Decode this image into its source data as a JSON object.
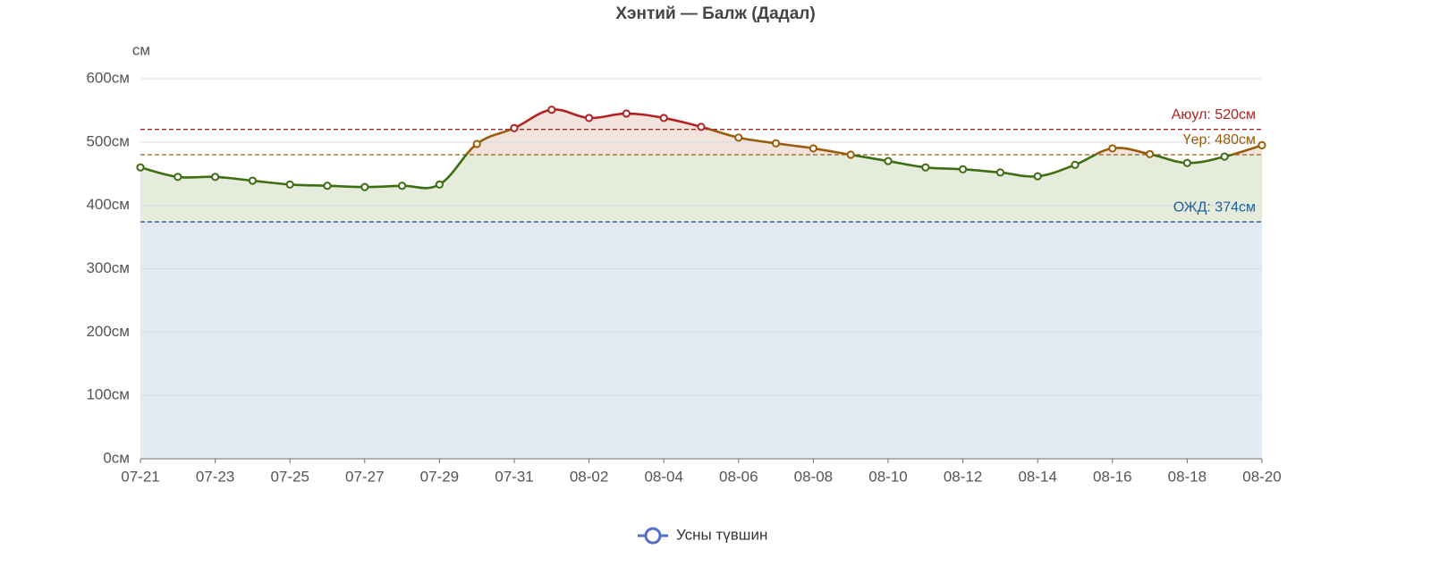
{
  "chart_data": {
    "type": "line",
    "title": "Хэнтий — Балж (Дадал)",
    "y_unit": "см",
    "categories": [
      "07-21",
      null,
      "07-23",
      null,
      "07-25",
      null,
      "07-27",
      null,
      "07-29",
      null,
      "07-31",
      null,
      "08-02",
      null,
      "08-04",
      null,
      "08-06",
      null,
      "08-08",
      null,
      "08-10",
      null,
      "08-12",
      null,
      "08-14",
      null,
      "08-16",
      null,
      "08-18",
      null,
      "08-20"
    ],
    "series": [
      {
        "name": "Усны түвшин",
        "color": "#5470c6",
        "values": [
          460,
          445,
          445,
          439,
          433,
          431,
          429,
          431,
          433,
          497,
          522,
          551,
          538,
          545,
          538,
          524,
          507,
          498,
          490,
          480,
          470,
          460,
          457,
          452,
          446,
          464,
          490,
          481,
          467,
          477,
          495
        ]
      }
    ],
    "line_color": "#3d6e12",
    "base_fill": "#e2eaf3",
    "thresholds": [
      {
        "label": "Аюул: 520см",
        "value": 520,
        "color": "#b22222",
        "area_fill": "#f3e3dd"
      },
      {
        "label": "Үер: 480см",
        "value": 480,
        "color": "#9a5c0a",
        "area_fill": "#f3e3dd"
      },
      {
        "label": "ОЖД: 374см",
        "value": 374,
        "color": "#1f5f99",
        "area_fill": "#e6ecdc"
      }
    ],
    "ylim": [
      0,
      600
    ],
    "yticks": [
      {
        "value": 0,
        "label": "0см"
      },
      {
        "value": 100,
        "label": "100см"
      },
      {
        "value": 200,
        "label": "200см"
      },
      {
        "value": 300,
        "label": "300см"
      },
      {
        "value": 400,
        "label": "400см"
      },
      {
        "value": 500,
        "label": "500см"
      },
      {
        "value": 600,
        "label": "600см"
      }
    ],
    "grid": true
  }
}
